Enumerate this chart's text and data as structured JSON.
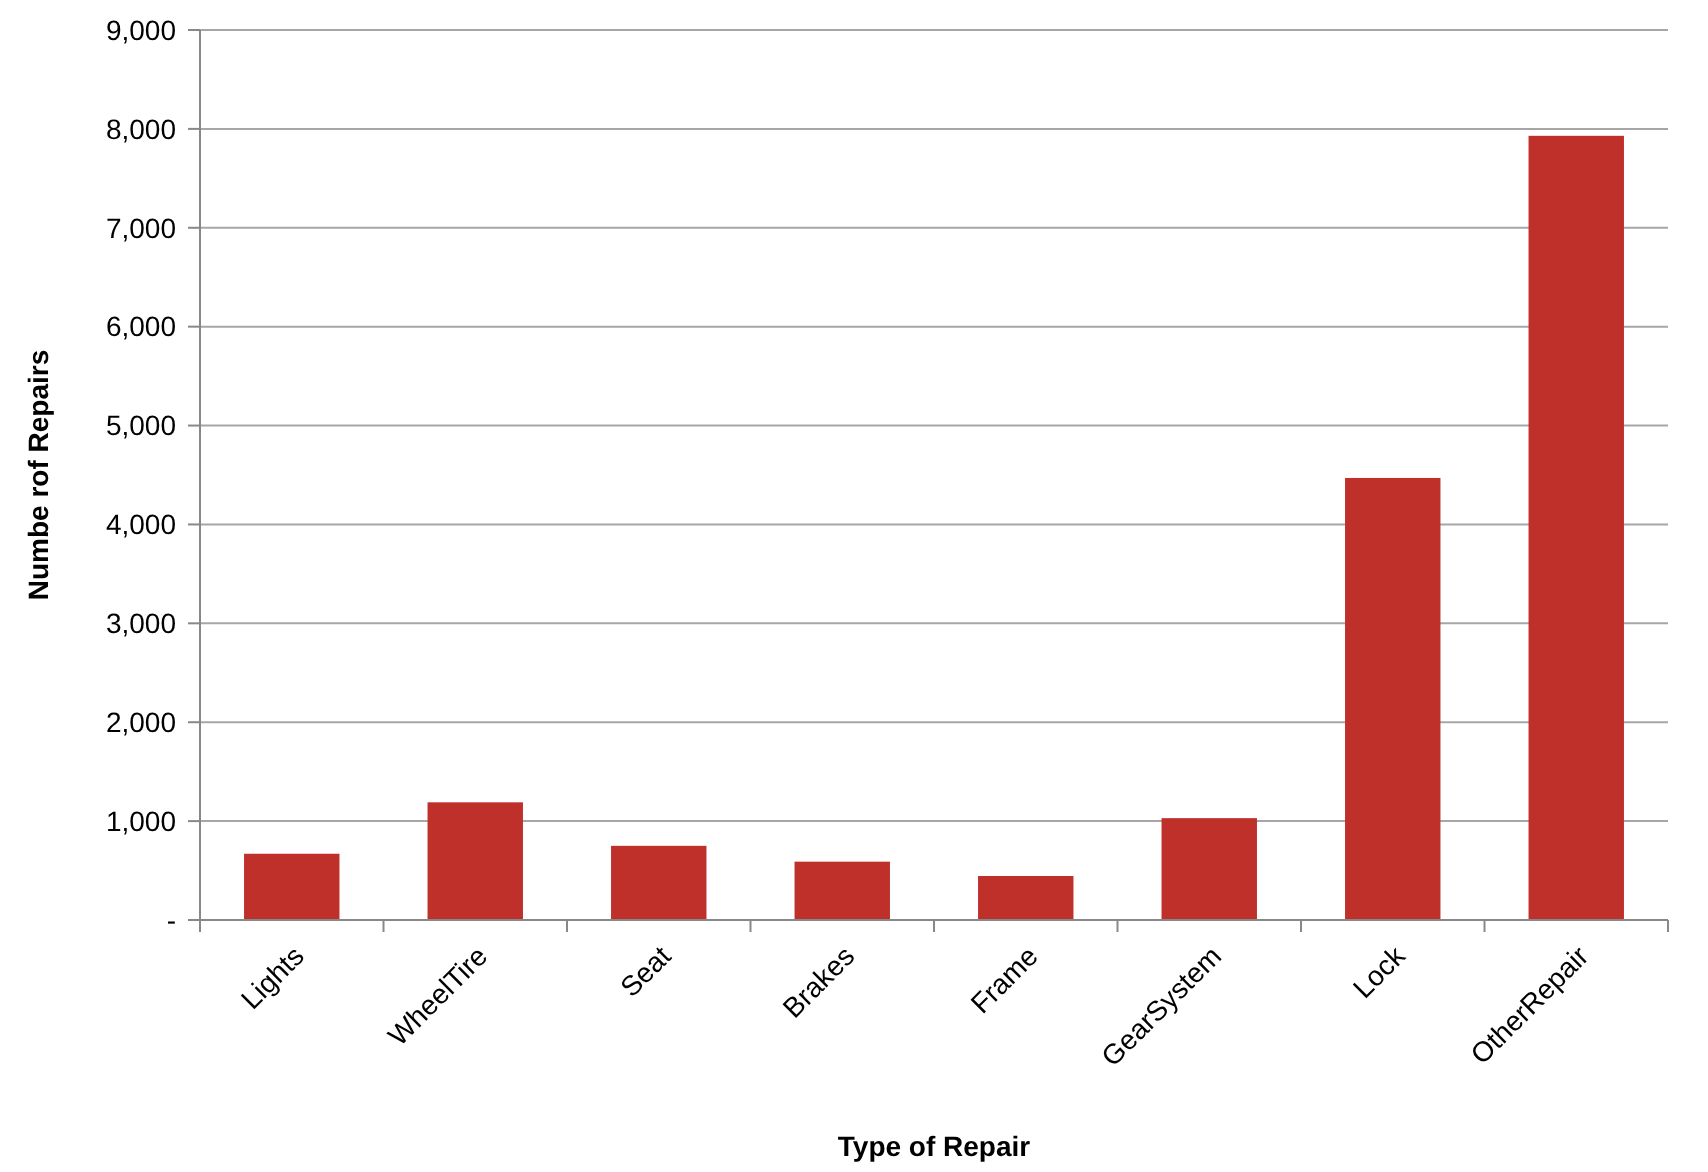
{
  "chart_data": {
    "type": "bar",
    "xlabel": "Type of Repair",
    "ylabel": "Numbe rof Repairs",
    "categories": [
      "Lights",
      "WheelTire",
      "Seat",
      "Brakes",
      "Frame",
      "GearSystem",
      "Lock",
      "OtherRepair"
    ],
    "values": [
      670,
      1190,
      750,
      590,
      445,
      1030,
      4470,
      7930
    ],
    "color": "#c0302b",
    "ylim": [
      0,
      9000
    ],
    "yticks": [
      {
        "value": 0,
        "label": "-"
      },
      {
        "value": 1000,
        "label": "1,000"
      },
      {
        "value": 2000,
        "label": "2,000"
      },
      {
        "value": 3000,
        "label": "3,000"
      },
      {
        "value": 4000,
        "label": "4,000"
      },
      {
        "value": 5000,
        "label": "5,000"
      },
      {
        "value": 6000,
        "label": "6,000"
      },
      {
        "value": 7000,
        "label": "7,000"
      },
      {
        "value": 8000,
        "label": "8,000"
      },
      {
        "value": 9000,
        "label": "9,000"
      }
    ],
    "grid": "y"
  }
}
